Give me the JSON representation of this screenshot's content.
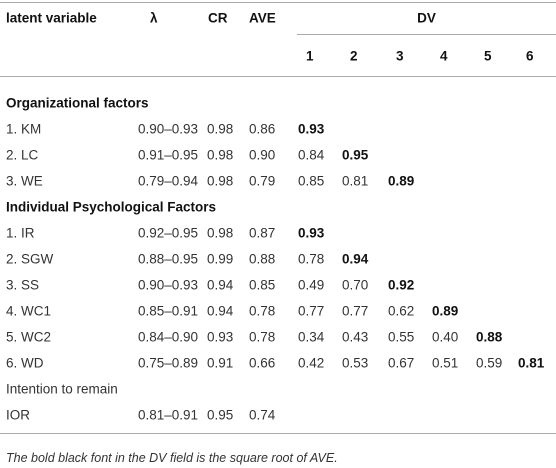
{
  "header": {
    "columns": [
      "latent variable",
      "λ",
      "CR",
      "AVE",
      "DV"
    ],
    "dv_numbers": [
      "1",
      "2",
      "3",
      "4",
      "5",
      "6"
    ]
  },
  "sections": [
    {
      "title": "Organizational factors",
      "bold": true,
      "rows": [
        {
          "label": "1. KM",
          "lambda": "0.90–0.93",
          "cr": "0.98",
          "ave": "0.86",
          "dv": [
            "0.93"
          ]
        },
        {
          "label": "2. LC",
          "lambda": "0.91–0.95",
          "cr": "0.98",
          "ave": "0.90",
          "dv": [
            "0.84",
            "0.95"
          ]
        },
        {
          "label": "3. WE",
          "lambda": "0.79–0.94",
          "cr": "0.98",
          "ave": "0.79",
          "dv": [
            "0.85",
            "0.81",
            "0.89"
          ]
        }
      ]
    },
    {
      "title": "Individual Psychological Factors",
      "bold": true,
      "rows": [
        {
          "label": "1. IR",
          "lambda": "0.92–0.95",
          "cr": "0.98",
          "ave": "0.87",
          "dv": [
            "0.93"
          ]
        },
        {
          "label": "2. SGW",
          "lambda": "0.88–0.95",
          "cr": "0.99",
          "ave": "0.88",
          "dv": [
            "0.78",
            "0.94"
          ]
        },
        {
          "label": "3. SS",
          "lambda": "0.90–0.93",
          "cr": "0.94",
          "ave": "0.85",
          "dv": [
            "0.49",
            "0.70",
            "0.92"
          ]
        },
        {
          "label": "4. WC1",
          "lambda": "0.85–0.91",
          "cr": "0.94",
          "ave": "0.78",
          "dv": [
            "0.77",
            "0.77",
            "0.62",
            "0.89"
          ]
        },
        {
          "label": "5. WC2",
          "lambda": "0.84–0.90",
          "cr": "0.93",
          "ave": "0.78",
          "dv": [
            "0.34",
            "0.43",
            "0.55",
            "0.40",
            "0.88"
          ]
        },
        {
          "label": "6. WD",
          "lambda": "0.75–0.89",
          "cr": "0.91",
          "ave": "0.66",
          "dv": [
            "0.42",
            "0.53",
            "0.67",
            "0.51",
            "0.59",
            "0.81"
          ]
        }
      ]
    },
    {
      "title": "Intention to remain",
      "bold": false,
      "rows": [
        {
          "label": "IOR",
          "lambda": "0.81–0.91",
          "cr": "0.95",
          "ave": "0.74",
          "dv": []
        }
      ]
    }
  ],
  "footnote": "The bold black font in the DV field is the square root of AVE."
}
